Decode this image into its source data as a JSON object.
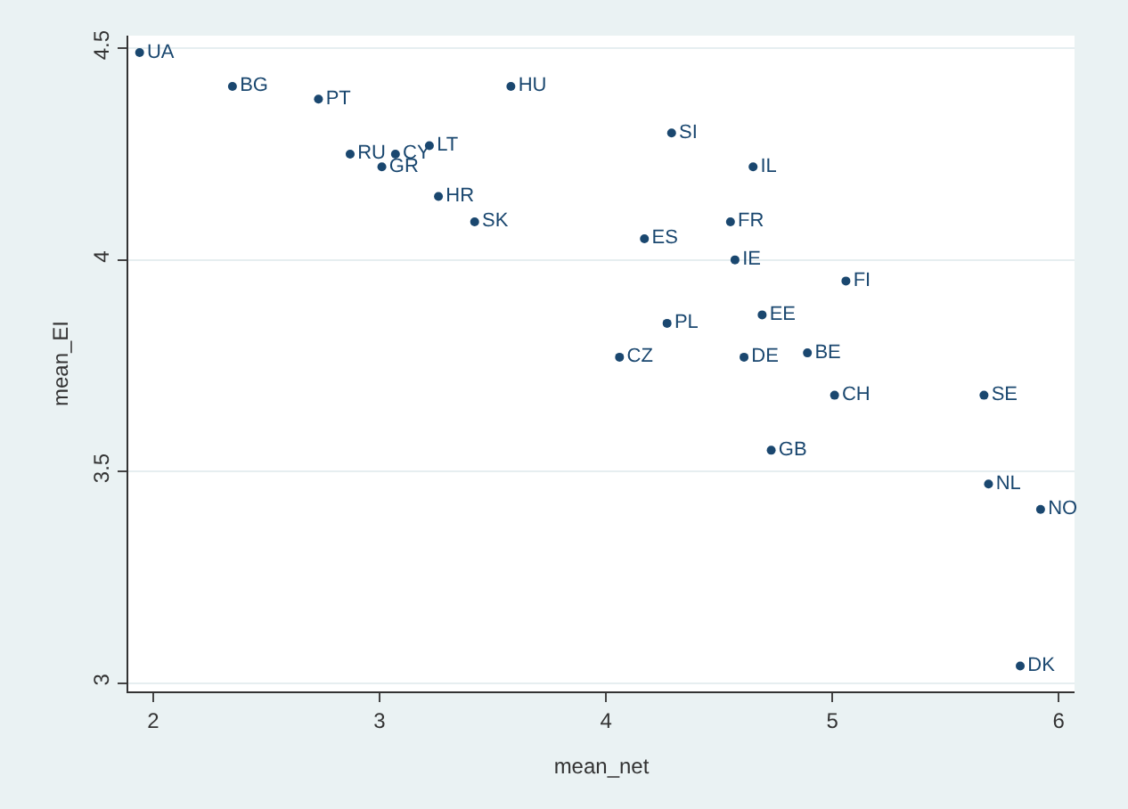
{
  "chart_data": {
    "type": "scatter",
    "xlabel": "mean_net",
    "ylabel": "mean_EI",
    "x": [
      1.94,
      2.35,
      2.73,
      3.58,
      2.87,
      3.07,
      3.01,
      3.22,
      3.26,
      3.42,
      4.29,
      4.65,
      4.55,
      4.17,
      4.57,
      5.06,
      4.69,
      4.27,
      4.06,
      4.61,
      4.89,
      5.01,
      5.67,
      4.73,
      5.69,
      5.92,
      5.83
    ],
    "values": [
      4.49,
      4.41,
      4.38,
      4.41,
      4.25,
      4.25,
      4.22,
      4.27,
      4.15,
      4.09,
      4.3,
      4.22,
      4.09,
      4.05,
      4.0,
      3.95,
      3.87,
      3.85,
      3.77,
      3.77,
      3.78,
      3.68,
      3.68,
      3.55,
      3.47,
      3.41,
      3.04
    ],
    "value_labels": [
      "UA",
      "BG",
      "PT",
      "HU",
      "RU",
      "CY",
      "GR",
      "LT",
      "HR",
      "SK",
      "SI",
      "IL",
      "FR",
      "ES",
      "IE",
      "FI",
      "EE",
      "PL",
      "CZ",
      "DE",
      "BE",
      "CH",
      "SE",
      "GB",
      "NL",
      "NO",
      "DK"
    ],
    "color": "#1a476f",
    "marker": "circle",
    "xlim": [
      1.89,
      6.07
    ],
    "xticks": [
      2,
      3,
      4,
      5,
      6
    ],
    "ylim": [
      2.98,
      4.53
    ],
    "yticks": [
      3,
      3.5,
      4,
      4.5
    ],
    "grid": "y",
    "legend": false
  }
}
